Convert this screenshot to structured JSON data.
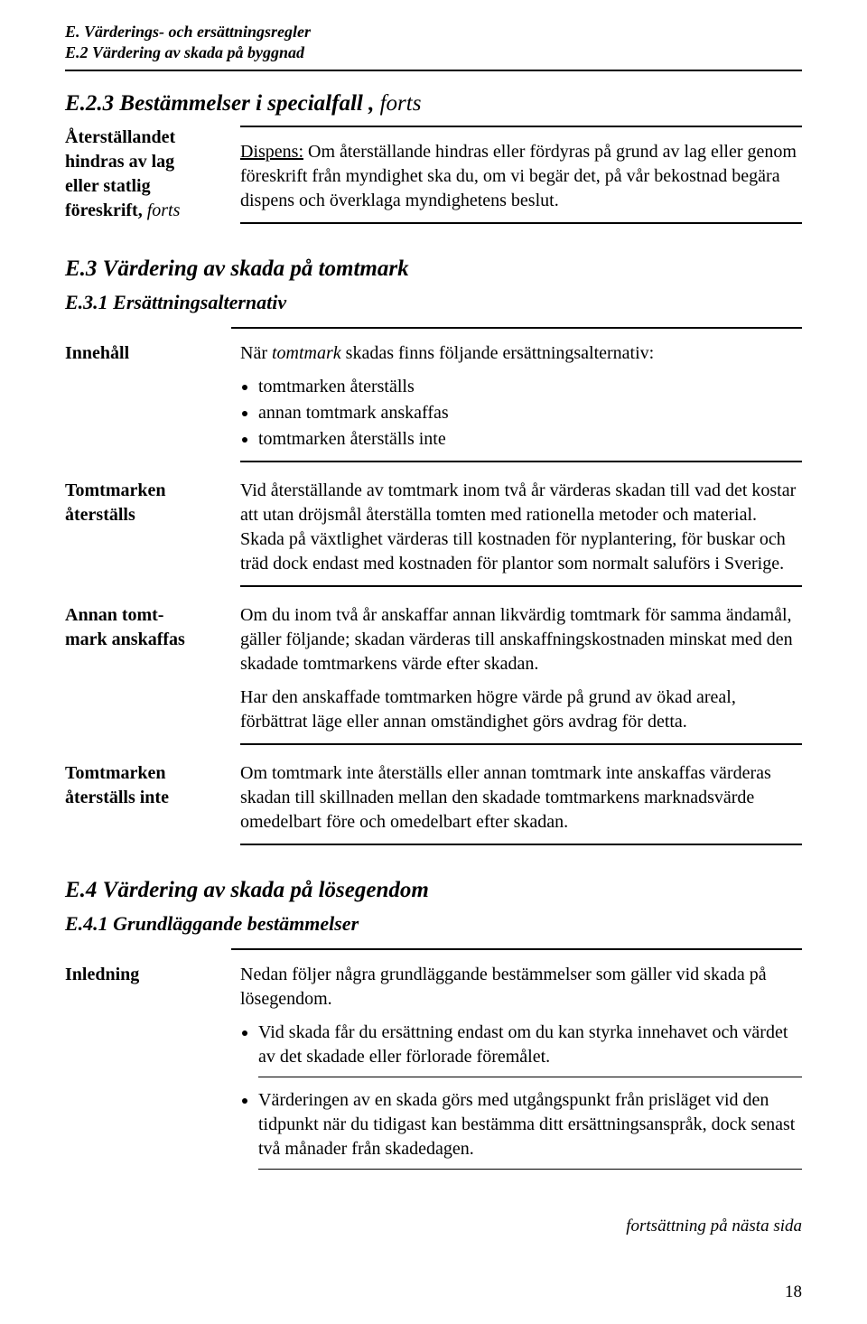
{
  "header": {
    "line1": "E. Värderings- och ersättningsregler",
    "line2": "E.2 Värdering av skada på byggnad"
  },
  "e23": {
    "heading": "E.2.3  Bestämmelser i specialfall ,",
    "heading_suffix": " forts",
    "label_line1": "Återställandet",
    "label_line2": "hindras av lag",
    "label_line3": "eller statlig",
    "label_line4": "föreskrift,",
    "label_line4_suffix": " forts",
    "body_prefix_underline": "Dispens:",
    "body_text": " Om återställande hindras eller fördyras på grund av lag eller genom föreskrift från myndighet ska du, om vi begär det, på vår bekostnad begära dispens och överklaga myndighetens beslut."
  },
  "e3": {
    "heading": "E.3     Värdering av skada på tomtmark",
    "sub_heading": "E.3.1  Ersättningsalternativ",
    "innehall_label": "Innehåll",
    "innehall_intro_pre": "När ",
    "innehall_intro_italic": "tomtmark",
    "innehall_intro_post": " skadas finns följande ersättningsalternativ:",
    "bullets": [
      "tomtmarken återställs",
      "annan tomtmark anskaffas",
      "tomtmarken återställs inte"
    ],
    "tomt_aterst_label1": "Tomtmarken",
    "tomt_aterst_label2": "återställs",
    "tomt_aterst_text": "Vid återställande av tomtmark inom två år värderas skadan till vad det kostar att utan dröjsmål återställa tomten med rationella metoder och material. Skada på växtlighet värderas till kostnaden för nyplantering, för buskar och träd dock endast med kostnaden för plantor som normalt saluförs i Sverige.",
    "annan_label1": "Annan tomt-",
    "annan_label2": "mark anskaffas",
    "annan_text1": "Om du inom två år anskaffar annan likvärdig tomtmark för samma ändamål, gäller följande; skadan värderas till anskaffningskostnaden minskat med den skadade tomtmarkens värde efter skadan.",
    "annan_text2": "Har den anskaffade tomtmarken högre värde på grund av ökad areal, förbättrat läge eller annan omständighet görs avdrag för detta.",
    "tomt_inte_label1": "Tomtmarken",
    "tomt_inte_label2": "återställs inte",
    "tomt_inte_text": "Om tomtmark inte återställs eller annan tomtmark inte anskaffas värderas skadan till skillnaden mellan den skadade tomtmarkens marknadsvärde omedelbart före och omedelbart efter skadan."
  },
  "e4": {
    "heading": "E.4     Värdering av skada på lösegendom",
    "sub_heading": "E.4.1  Grundläggande bestämmelser",
    "inledning_label": "Inledning",
    "inledning_text": "Nedan följer några grundläggande bestämmelser som gäller vid skada på lösegendom.",
    "bullets": [
      "Vid skada får du ersättning endast om du kan styrka innehavet och värdet av det skadade eller förlorade föremålet.",
      "Värderingen av en skada görs med utgångspunkt från prisläget vid den tidpunkt när du tidigast kan bestämma ditt ersättningsanspråk, dock senast två månader från skadedagen."
    ]
  },
  "footer": {
    "continuation": "fortsättning på nästa sida",
    "page_number": "18"
  }
}
